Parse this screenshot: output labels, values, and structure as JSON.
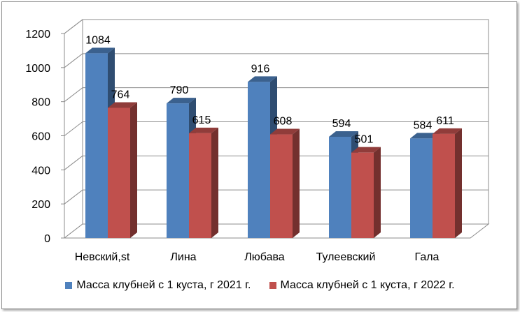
{
  "chart_data": {
    "type": "bar",
    "style": "3d-clustered-column",
    "categories": [
      "Невский,st",
      "Лина",
      "Любава",
      "Тулеевский",
      "Гала"
    ],
    "series": [
      {
        "name": "Масса клубней с 1 куста, г 2021 г.",
        "values": [
          1084,
          790,
          916,
          594,
          584
        ],
        "color": "#4f81bd"
      },
      {
        "name": "Масса клубней с 1 куста, г 2022 г.",
        "values": [
          764,
          615,
          608,
          501,
          611
        ],
        "color": "#c0504d"
      }
    ],
    "ylim": [
      0,
      1200
    ],
    "yticks": [
      0,
      200,
      400,
      600,
      800,
      1000,
      1200
    ],
    "grid": true,
    "legend_position": "bottom",
    "data_labels": true
  }
}
